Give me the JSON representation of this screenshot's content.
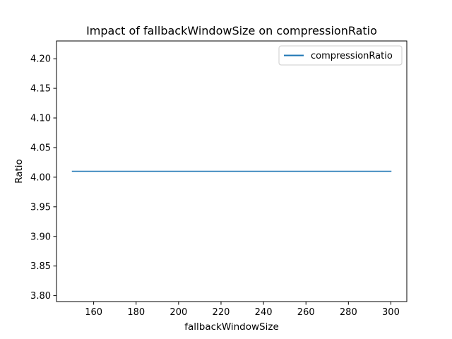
{
  "chart_data": {
    "type": "line",
    "title": "Impact of fallbackWindowSize on compressionRatio",
    "xlabel": "fallbackWindowSize",
    "ylabel": "Ratio",
    "xlim": [
      142.5,
      307.5
    ],
    "ylim": [
      3.79,
      4.23
    ],
    "xticks": [
      160,
      180,
      200,
      220,
      240,
      260,
      280,
      300
    ],
    "xtick_labels": [
      "160",
      "180",
      "200",
      "220",
      "240",
      "260",
      "280",
      "300"
    ],
    "yticks": [
      3.8,
      3.85,
      3.9,
      3.95,
      4.0,
      4.05,
      4.1,
      4.15,
      4.2
    ],
    "ytick_labels": [
      "3.80",
      "3.85",
      "3.90",
      "3.95",
      "4.00",
      "4.05",
      "4.10",
      "4.15",
      "4.20"
    ],
    "grid": false,
    "legend_position": "top-right",
    "series": [
      {
        "name": "compressionRatio",
        "color": "#1f77b4",
        "x": [
          150,
          300
        ],
        "y": [
          4.01,
          4.01
        ]
      }
    ]
  }
}
